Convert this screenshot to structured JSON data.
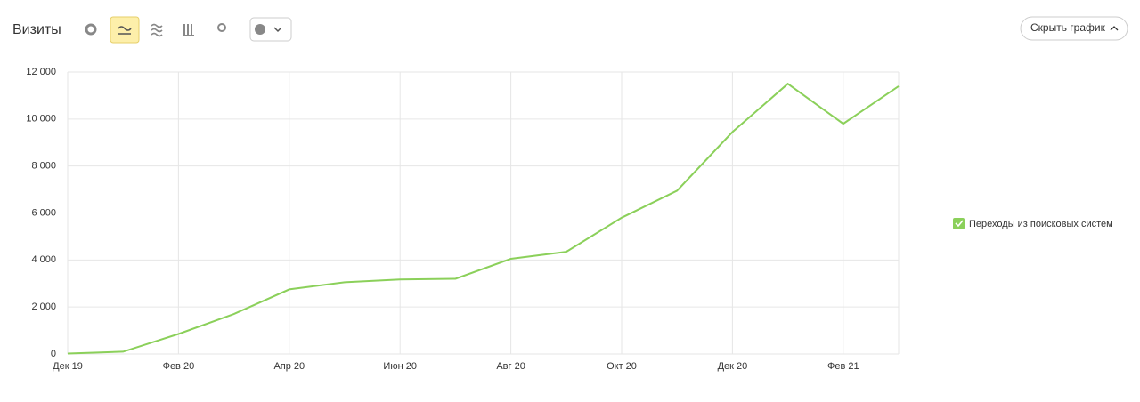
{
  "chart_data": {
    "type": "line",
    "title": "Визиты",
    "categories": [
      "Дек 19",
      null,
      "Фев 20",
      null,
      "Апр 20",
      null,
      "Июн 20",
      null,
      "Авг 20",
      null,
      "Окт 20",
      null,
      "Дек 20",
      null,
      "Фев 21",
      null
    ],
    "series": [
      {
        "name": "Переходы из поисковых систем",
        "color": "#8bd05a",
        "values": [
          20,
          100,
          850,
          1700,
          2750,
          3050,
          3170,
          3200,
          4050,
          4350,
          5800,
          6950,
          9450,
          11500,
          9800,
          11400
        ]
      }
    ],
    "ylim": [
      0,
      12000
    ],
    "yticks": [
      0,
      {
        "value": 2000,
        "label": "2 000"
      },
      {
        "value": 4000,
        "label": "4 000"
      },
      {
        "value": 6000,
        "label": "6 000"
      },
      {
        "value": 8000,
        "label": "8 000"
      },
      {
        "value": 10000,
        "label": "10 000"
      },
      {
        "value": 12000,
        "label": "12 000"
      }
    ],
    "grid": true
  },
  "controls": {
    "hide_chart": "Скрыть график"
  }
}
